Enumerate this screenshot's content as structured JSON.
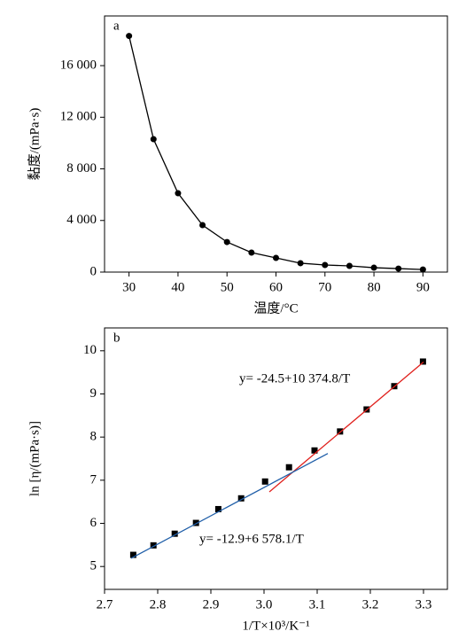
{
  "chart_data": [
    {
      "type": "line",
      "panel_label": "a",
      "x_label": "温度/°C",
      "y_label": "黏度/(mPa·s)",
      "x": [
        30,
        35,
        40,
        45,
        50,
        55,
        60,
        65,
        70,
        75,
        80,
        85,
        90
      ],
      "series": [
        {
          "color": "#000000",
          "style": "line-marker",
          "values": [
            18300,
            10300,
            6110,
            3640,
            2330,
            1510,
            1100,
            690,
            550,
            480,
            340,
            270,
            200
          ]
        }
      ],
      "xlim": [
        25,
        95
      ],
      "xticks": [
        30,
        40,
        50,
        60,
        70,
        80,
        90
      ],
      "ylim": [
        0,
        19850
      ],
      "yticks": [
        0,
        {
          "value": 4000,
          "label": "4 000"
        },
        {
          "value": 8000,
          "label": "8 000"
        },
        {
          "value": 12000,
          "label": "12 000"
        },
        {
          "value": 16000,
          "label": "16 000"
        }
      ]
    },
    {
      "type": "scatter",
      "panel_label": "b",
      "x_label": "1/T×10³/K⁻¹",
      "y_label": "ln [η/(mPa·s)]",
      "series": [
        {
          "color": "#000000",
          "style": "square-marker",
          "x": [
            2.754,
            2.792,
            2.832,
            2.872,
            2.914,
            2.957,
            3.002,
            3.047,
            3.095,
            3.143,
            3.193,
            3.245,
            3.299
          ],
          "values": [
            5.27,
            5.49,
            5.76,
            6.01,
            6.33,
            6.58,
            6.97,
            7.3,
            7.69,
            8.13,
            8.64,
            9.18,
            9.75
          ]
        },
        {
          "color": "#e0201c",
          "style": "line",
          "x": [
            3.01,
            3.3
          ],
          "values": [
            6.73,
            9.74
          ]
        },
        {
          "color": "#1f5ea8",
          "style": "line",
          "x": [
            2.75,
            3.12
          ],
          "values": [
            5.19,
            7.62
          ]
        }
      ],
      "annotations": [
        {
          "text": "y= -24.5+10 374.8/T",
          "color": "#e0201c"
        },
        {
          "text": "y= -12.9+6 578.1/T",
          "color": "#1f5ea8"
        }
      ],
      "xlim": [
        2.7,
        3.345
      ],
      "xticks": [
        2.7,
        2.8,
        2.9,
        {
          "value": 3.0,
          "label": "3.0"
        },
        3.1,
        3.2,
        3.3
      ],
      "ylim": [
        4.47,
        10.53
      ],
      "yticks": [
        5,
        6,
        7,
        8,
        9,
        10
      ]
    }
  ]
}
